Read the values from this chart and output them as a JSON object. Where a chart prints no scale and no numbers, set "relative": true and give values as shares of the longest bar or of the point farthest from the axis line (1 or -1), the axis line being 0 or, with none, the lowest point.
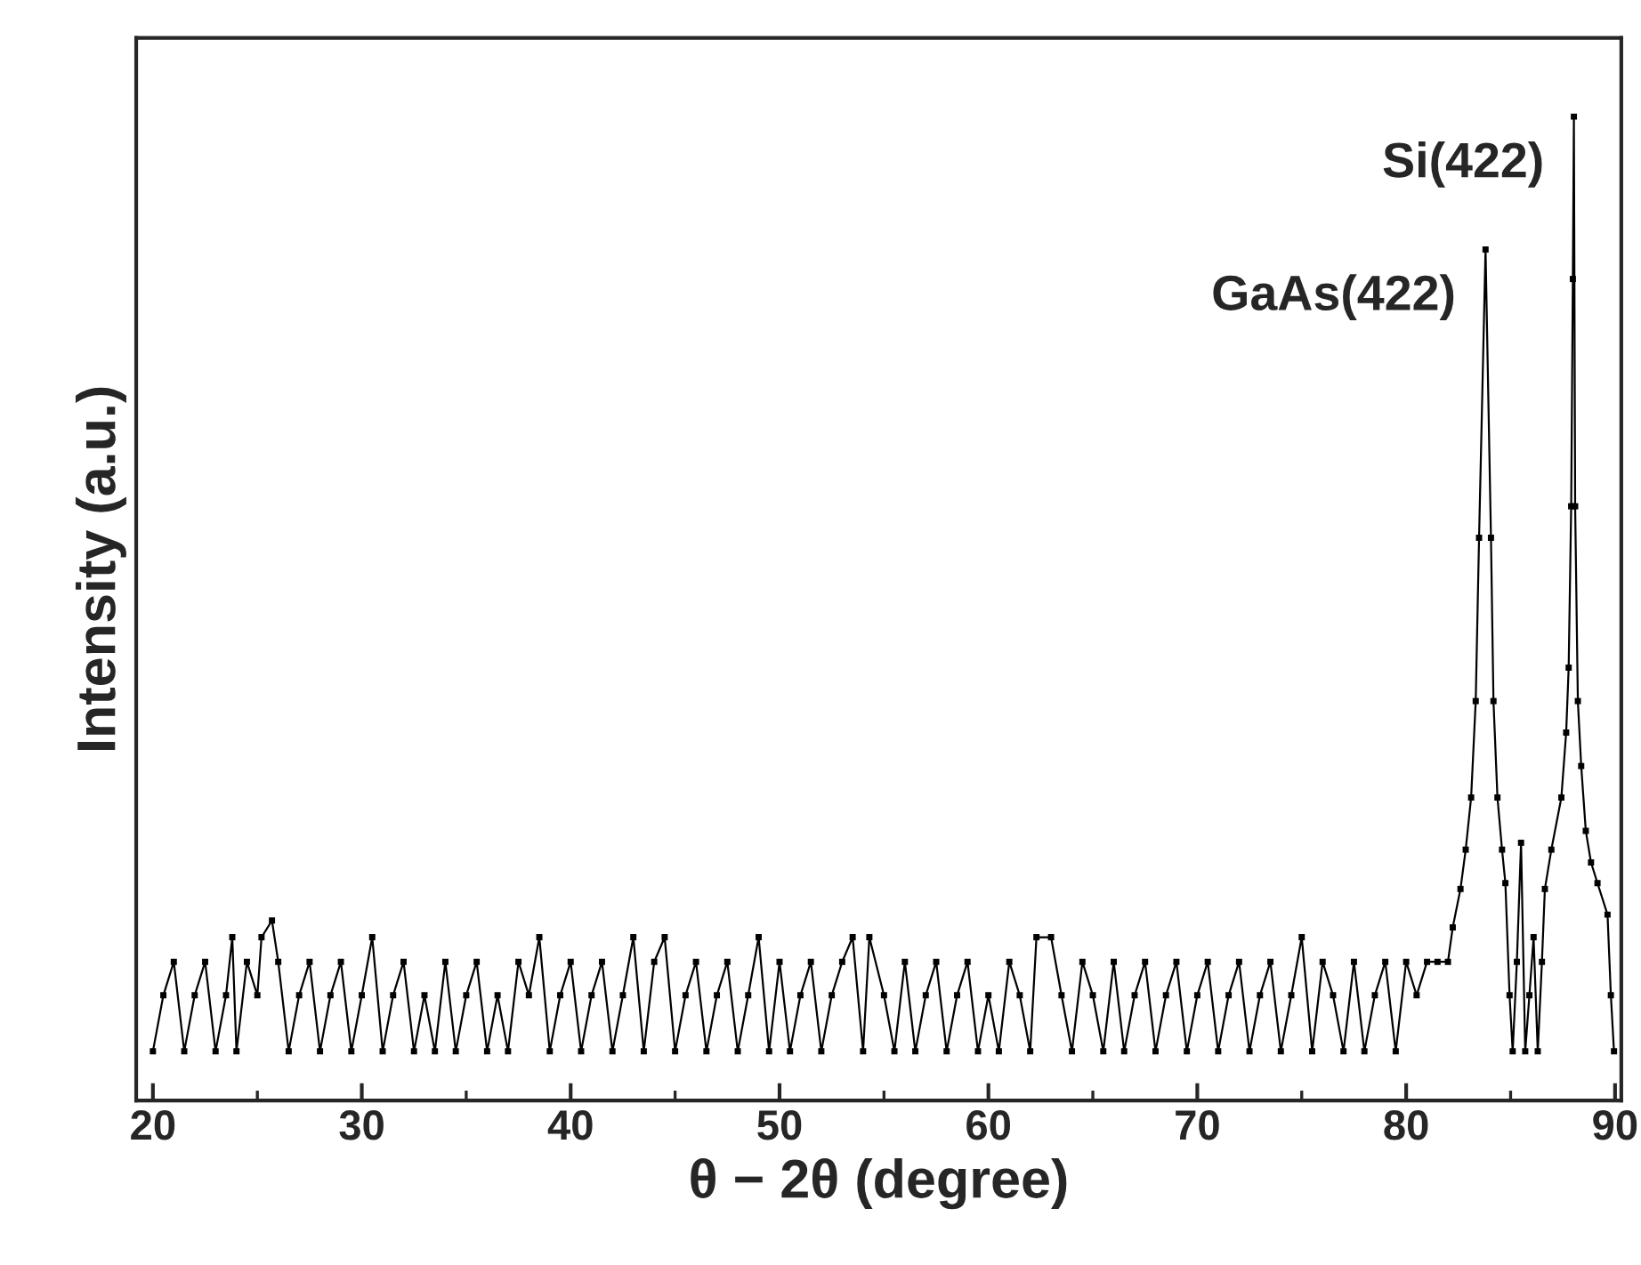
{
  "chart_data": {
    "type": "line",
    "relative": true,
    "xlabel": "θ − 2θ (degree)",
    "ylabel": "Intensity (a.u.)",
    "xlim": [
      19.2,
      90.3
    ],
    "xticks": [
      20,
      30,
      40,
      50,
      60,
      70,
      80,
      90
    ],
    "grid": false,
    "marker": "square",
    "line_style": "solid",
    "annotations": [
      {
        "text": "GaAs(422)",
        "x": 83.8,
        "y": 0.865
      },
      {
        "text": "Si(422)",
        "x": 88.03,
        "y": 1.0
      }
    ],
    "series": [
      {
        "color": "#000000",
        "x": [
          20.0,
          20.5,
          21.0,
          21.5,
          22.0,
          22.5,
          23.0,
          23.5,
          23.8,
          24.0,
          24.5,
          25.0,
          25.2,
          25.7,
          26.0,
          26.5,
          27.0,
          27.5,
          28.0,
          28.5,
          29.0,
          29.5,
          30.0,
          30.5,
          31.0,
          31.5,
          32.0,
          32.5,
          33.0,
          33.5,
          34.0,
          34.5,
          35.0,
          35.5,
          36.0,
          36.5,
          37.0,
          37.5,
          38.0,
          38.5,
          39.0,
          39.5,
          40.0,
          40.5,
          41.0,
          41.5,
          42.0,
          42.5,
          43.0,
          43.5,
          44.0,
          44.5,
          45.0,
          45.5,
          46.0,
          46.5,
          47.0,
          47.5,
          48.0,
          48.5,
          49.0,
          49.5,
          50.0,
          50.5,
          51.0,
          51.5,
          52.0,
          52.5,
          53.0,
          53.5,
          54.0,
          54.3,
          55.0,
          55.5,
          56.0,
          56.5,
          57.0,
          57.5,
          58.0,
          58.5,
          59.0,
          59.5,
          60.0,
          60.5,
          61.0,
          61.5,
          62.0,
          62.3,
          63.0,
          63.5,
          64.0,
          64.5,
          65.0,
          65.5,
          66.0,
          66.5,
          67.0,
          67.5,
          68.0,
          68.5,
          69.0,
          69.5,
          70.0,
          70.5,
          71.0,
          71.5,
          72.0,
          72.5,
          73.0,
          73.5,
          74.0,
          74.5,
          75.0,
          75.5,
          76.0,
          76.5,
          77.0,
          77.5,
          78.0,
          78.5,
          79.0,
          79.5,
          80.0,
          80.5,
          81.0,
          81.5,
          82.0,
          82.23,
          82.6,
          82.85,
          83.11,
          83.33,
          83.49,
          83.8,
          84.06,
          84.18,
          84.37,
          84.59,
          84.75,
          84.95,
          85.1,
          85.3,
          85.5,
          85.7,
          85.9,
          86.1,
          86.3,
          86.5,
          86.64,
          86.95,
          87.43,
          87.66,
          87.78,
          87.9,
          87.98,
          88.03,
          88.09,
          88.22,
          88.38,
          88.6,
          88.85,
          89.16,
          89.64,
          89.8,
          89.95
        ],
        "values": [
          0.05,
          0.107,
          0.141,
          0.05,
          0.107,
          0.141,
          0.05,
          0.107,
          0.166,
          0.05,
          0.141,
          0.107,
          0.166,
          0.183,
          0.141,
          0.05,
          0.107,
          0.141,
          0.05,
          0.107,
          0.141,
          0.05,
          0.107,
          0.166,
          0.05,
          0.107,
          0.141,
          0.05,
          0.107,
          0.05,
          0.141,
          0.05,
          0.107,
          0.141,
          0.05,
          0.107,
          0.05,
          0.141,
          0.107,
          0.166,
          0.05,
          0.107,
          0.141,
          0.05,
          0.107,
          0.141,
          0.05,
          0.107,
          0.166,
          0.05,
          0.141,
          0.166,
          0.05,
          0.107,
          0.141,
          0.05,
          0.107,
          0.141,
          0.05,
          0.107,
          0.166,
          0.05,
          0.141,
          0.05,
          0.107,
          0.141,
          0.05,
          0.107,
          0.141,
          0.166,
          0.05,
          0.166,
          0.107,
          0.05,
          0.141,
          0.05,
          0.107,
          0.141,
          0.05,
          0.107,
          0.141,
          0.05,
          0.107,
          0.05,
          0.141,
          0.107,
          0.05,
          0.166,
          0.166,
          0.107,
          0.05,
          0.141,
          0.107,
          0.05,
          0.141,
          0.05,
          0.107,
          0.141,
          0.05,
          0.107,
          0.141,
          0.05,
          0.107,
          0.141,
          0.05,
          0.107,
          0.141,
          0.05,
          0.107,
          0.141,
          0.05,
          0.107,
          0.166,
          0.05,
          0.141,
          0.107,
          0.05,
          0.141,
          0.05,
          0.107,
          0.141,
          0.05,
          0.141,
          0.107,
          0.141,
          0.141,
          0.141,
          0.176,
          0.215,
          0.255,
          0.308,
          0.406,
          0.572,
          0.865,
          0.572,
          0.406,
          0.308,
          0.255,
          0.221,
          0.107,
          0.05,
          0.141,
          0.262,
          0.05,
          0.107,
          0.166,
          0.05,
          0.141,
          0.215,
          0.255,
          0.308,
          0.374,
          0.44,
          0.604,
          0.835,
          1.0,
          0.604,
          0.406,
          0.34,
          0.274,
          0.242,
          0.221,
          0.189,
          0.107,
          0.05
        ]
      }
    ]
  }
}
